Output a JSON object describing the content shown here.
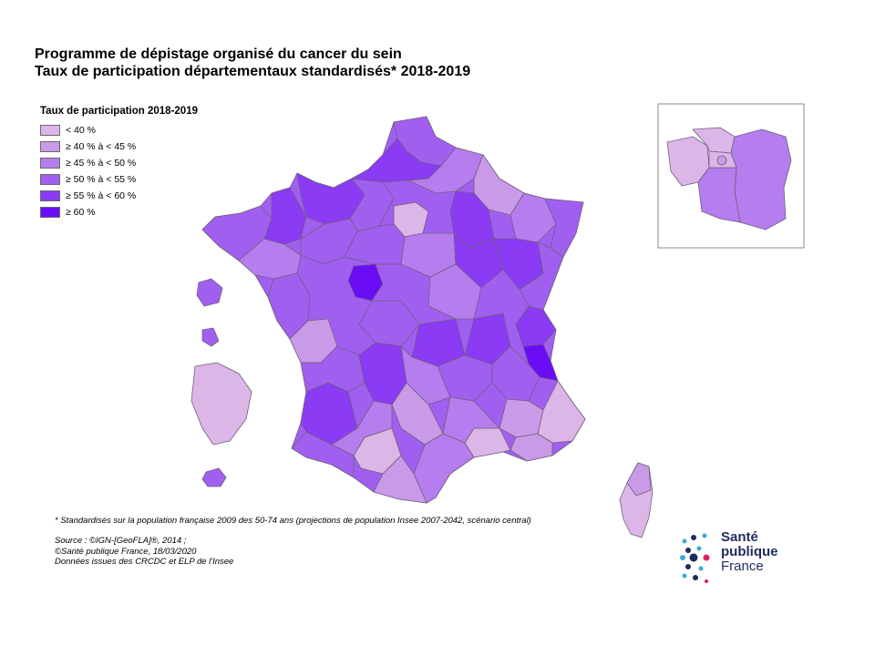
{
  "title": {
    "line1": "Programme de dépistage organisé du cancer du sein",
    "line2": "Taux de participation départementaux standardisés* 2018-2019"
  },
  "legend": {
    "title": "Taux de participation 2018-2019",
    "classes": [
      {
        "label": "< 40 %",
        "color": "#dcb6e6"
      },
      {
        "label": "≥ 40 % à < 45 %",
        "color": "#c99ae8"
      },
      {
        "label": "≥ 45 % à < 50 %",
        "color": "#b57ded"
      },
      {
        "label": "≥ 50 % à < 55 %",
        "color": "#a15ff0"
      },
      {
        "label": "≥ 55 % à < 60 %",
        "color": "#8a3bf3"
      },
      {
        "label": "≥ 60 %",
        "color": "#6a0df5"
      }
    ]
  },
  "footnote": "* Standardisés sur la population française 2009 des 50-74 ans (projections de population Insee 2007-2042, scénario central)",
  "source": {
    "line1": "Source : ©IGN-[GeoFLA]®, 2014 ;",
    "line2": "©Santé publique France, 18/03/2020",
    "line3": "Données issues des CRCDC et ELP de l'Insee"
  },
  "logo": {
    "line1": "Santé",
    "line2": "publique",
    "line3": "France"
  }
}
